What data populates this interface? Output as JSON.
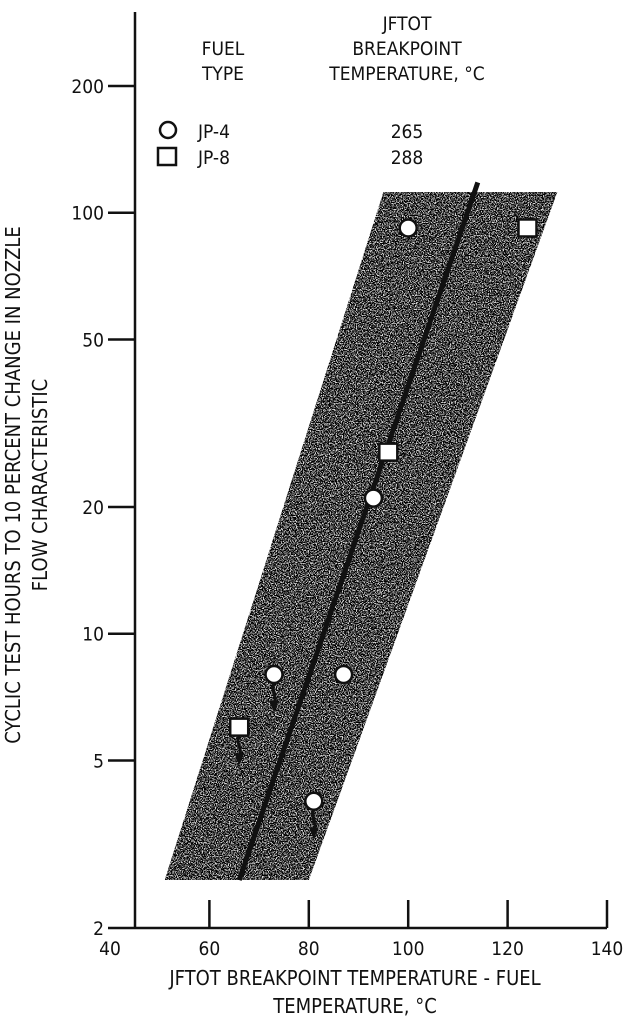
{
  "chart_data": {
    "type": "scatter",
    "xlabel_lines": [
      "JFTOT BREAKPOINT TEMPERATURE - FUEL",
      "TEMPERATURE, °C"
    ],
    "ylabel_lines": [
      "CYCLIC TEST HOURS TO 10 PERCENT CHANGE IN NOZZLE",
      "FLOW CHARACTERISTIC"
    ],
    "xlim": [
      40,
      140
    ],
    "ylim": [
      2,
      300
    ],
    "yscale": "log",
    "x_ticks": [
      40,
      60,
      80,
      100,
      120,
      140
    ],
    "x_tick_labels": [
      "40",
      "60",
      "80",
      "100",
      "120",
      "140"
    ],
    "y_ticks": [
      2,
      5,
      10,
      20,
      50,
      100,
      200
    ],
    "y_tick_labels": [
      "2",
      "5",
      "10",
      "20",
      "50",
      "100",
      "200"
    ],
    "grid": false,
    "legend": {
      "placement": "top-left",
      "header_col1": [
        "FUEL",
        "TYPE"
      ],
      "header_col2": [
        "JFTOT",
        "BREAKPOINT",
        "TEMPERATURE, °C"
      ],
      "entries": [
        {
          "marker": "circle",
          "fuel": "JP-4",
          "temp": "265"
        },
        {
          "marker": "square",
          "fuel": "JP-8",
          "temp": "288"
        }
      ]
    },
    "series": [
      {
        "name": "JP-4",
        "marker": "circle",
        "points": [
          {
            "x": 100,
            "y": 92
          },
          {
            "x": 93,
            "y": 21
          },
          {
            "x": 73,
            "y": 8,
            "arrow_down": true
          },
          {
            "x": 87,
            "y": 8
          },
          {
            "x": 81,
            "y": 4,
            "arrow_down": true
          }
        ]
      },
      {
        "name": "JP-8",
        "marker": "square",
        "points": [
          {
            "x": 124,
            "y": 92
          },
          {
            "x": 96,
            "y": 27
          },
          {
            "x": 66,
            "y": 6,
            "arrow_down": true
          }
        ]
      }
    ],
    "trend_line": {
      "x1": 66,
      "y1": 2.6,
      "x2": 114,
      "y2": 118
    },
    "scatter_band": [
      {
        "x": 51,
        "y": 2.6
      },
      {
        "x": 80,
        "y": 2.6
      },
      {
        "x": 130,
        "y": 112
      },
      {
        "x": 95,
        "y": 112
      }
    ]
  }
}
